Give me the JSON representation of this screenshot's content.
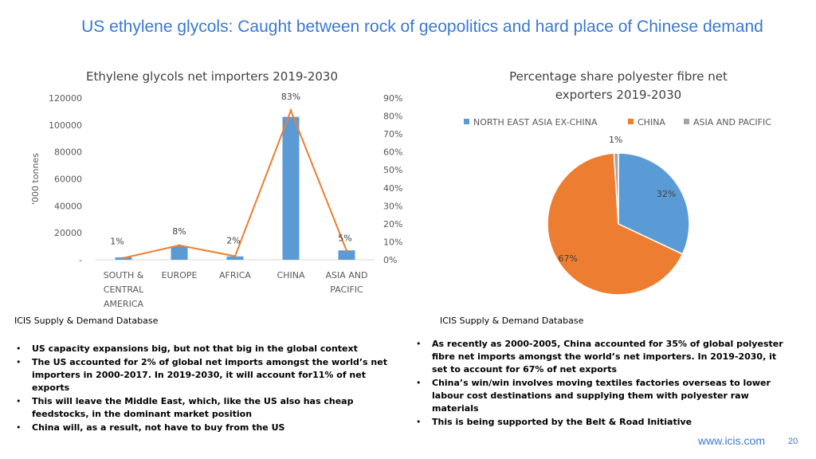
{
  "slide": {
    "title": "US ethylene glycols: Caught between rock of geopolitics and hard place of Chinese demand",
    "footer_url": "www.icis.com",
    "page_number": "20"
  },
  "left": {
    "source": "ICIS Supply & Demand Database",
    "bullets": [
      "US capacity expansions big, but not that big in the global context",
      "The US accounted for 2% of global net imports amongst the world’s net importers in 2000-2017. In 2019-2030, it will account for11% of net exports",
      "This will leave the Middle East, which, like the US also has cheap feedstocks, in the dominant market position",
      "China will, as a  result, not have to buy from the US"
    ]
  },
  "right": {
    "source": "ICIS Supply & Demand Database",
    "bullets": [
      "As recently as 2000-2005, China accounted for 35% of global polyester fibre net imports amongst the world’s net importers. In 2019-2030, it set to account for 67% of net exports",
      "China’s win/win involves moving textiles factories overseas to lower labour cost destinations and supplying them with polyester raw materials",
      "This is being supported by the Belt & Road Initiative"
    ]
  },
  "chart_data": [
    {
      "type": "bar",
      "title": "Ethylene glycols net importers 2019-2030",
      "ylabel": "'000 tonnes",
      "categories": [
        [
          "SOUTH &",
          "CENTRAL",
          "AMERICA"
        ],
        [
          "EUROPE"
        ],
        [
          "AFRICA"
        ],
        [
          "CHINA"
        ],
        [
          "ASIA AND",
          "PACIFIC"
        ]
      ],
      "ylim": [
        0,
        120000
      ],
      "y_ticks": [
        0,
        20000,
        40000,
        60000,
        80000,
        100000,
        120000
      ],
      "y_tick_labels": [
        "-",
        "20000",
        "40000",
        "60000",
        "80000",
        "100000",
        "120000"
      ],
      "y2lim": [
        0,
        90
      ],
      "y2_ticks": [
        0,
        10,
        20,
        30,
        40,
        50,
        60,
        70,
        80,
        90
      ],
      "y2_tick_labels": [
        "0%",
        "10%",
        "20%",
        "30%",
        "40%",
        "50%",
        "60%",
        "70%",
        "80%",
        "90%"
      ],
      "series": [
        {
          "type": "bar",
          "axis": "left",
          "color": "#5b9bd5",
          "values": [
            1800,
            10000,
            2500,
            106000,
            7000
          ]
        },
        {
          "type": "line",
          "axis": "right",
          "color": "#ed7d31",
          "values": [
            1,
            8,
            2,
            83,
            5
          ],
          "data_labels": [
            "1%",
            "8%",
            "2%",
            "83%",
            "5%"
          ]
        }
      ],
      "legend": "none",
      "grid": false
    },
    {
      "type": "pie",
      "title": "Percentage share polyester fibre net exporters 2019-2030",
      "title_lines": [
        "Percentage share polyester fibre net",
        "exporters 2019-2030"
      ],
      "legend": "top",
      "slices": [
        {
          "label": "NORTH EAST ASIA EX-CHINA",
          "value": 32,
          "data_label": "32%",
          "color": "#5b9bd5"
        },
        {
          "label": "CHINA",
          "value": 67,
          "data_label": "67%",
          "color": "#ed7d31"
        },
        {
          "label": "ASIA AND PACIFIC",
          "value": 1,
          "data_label": "1%",
          "color": "#a5a5a5"
        }
      ]
    }
  ]
}
